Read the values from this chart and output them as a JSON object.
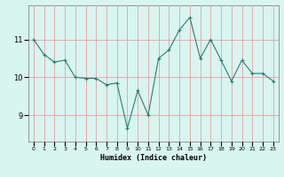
{
  "x": [
    0,
    1,
    2,
    3,
    4,
    5,
    6,
    7,
    8,
    9,
    10,
    11,
    12,
    13,
    14,
    15,
    16,
    17,
    18,
    19,
    20,
    21,
    22,
    23
  ],
  "y": [
    11.0,
    10.6,
    10.4,
    10.45,
    10.0,
    9.97,
    9.97,
    9.8,
    9.85,
    8.65,
    9.65,
    9.0,
    10.5,
    10.72,
    11.25,
    11.58,
    10.5,
    11.0,
    10.45,
    9.9,
    10.45,
    10.1,
    10.1,
    9.9
  ],
  "line_color": "#2e7d6e",
  "marker": "+",
  "marker_size": 3,
  "bg_color": "#d8f5f0",
  "grid_color": "#e8a0a0",
  "xlabel": "Humidex (Indice chaleur)",
  "yticks": [
    9,
    10,
    11
  ],
  "ylim": [
    8.3,
    11.9
  ],
  "xlim": [
    -0.5,
    23.5
  ]
}
